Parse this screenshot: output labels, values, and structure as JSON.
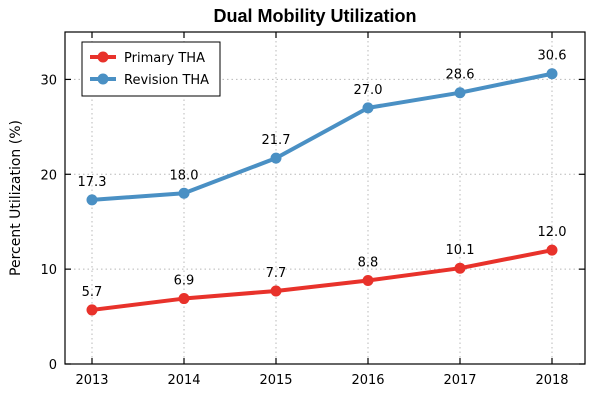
{
  "chart_data": {
    "type": "line",
    "title": "Dual Mobility Utilization",
    "xlabel": "",
    "ylabel": "Percent Utilization (%)",
    "categories": [
      "2013",
      "2014",
      "2015",
      "2016",
      "2017",
      "2018"
    ],
    "ylim": [
      0,
      35
    ],
    "yticks": [
      0,
      10,
      20,
      30
    ],
    "grid": true,
    "legend": "top-left",
    "series": [
      {
        "name": "Primary THA",
        "color": "#e8322b",
        "values": [
          5.7,
          6.9,
          7.7,
          8.8,
          10.1,
          12.0
        ],
        "labels": [
          "5.7",
          "6.9",
          "7.7",
          "8.8",
          "10.1",
          "12.0"
        ]
      },
      {
        "name": "Revision THA",
        "color": "#4a90c4",
        "values": [
          17.3,
          18.0,
          21.7,
          27.0,
          28.6,
          30.6
        ],
        "labels": [
          "17.3",
          "18.0",
          "21.7",
          "27.0",
          "28.6",
          "30.6"
        ]
      }
    ]
  }
}
